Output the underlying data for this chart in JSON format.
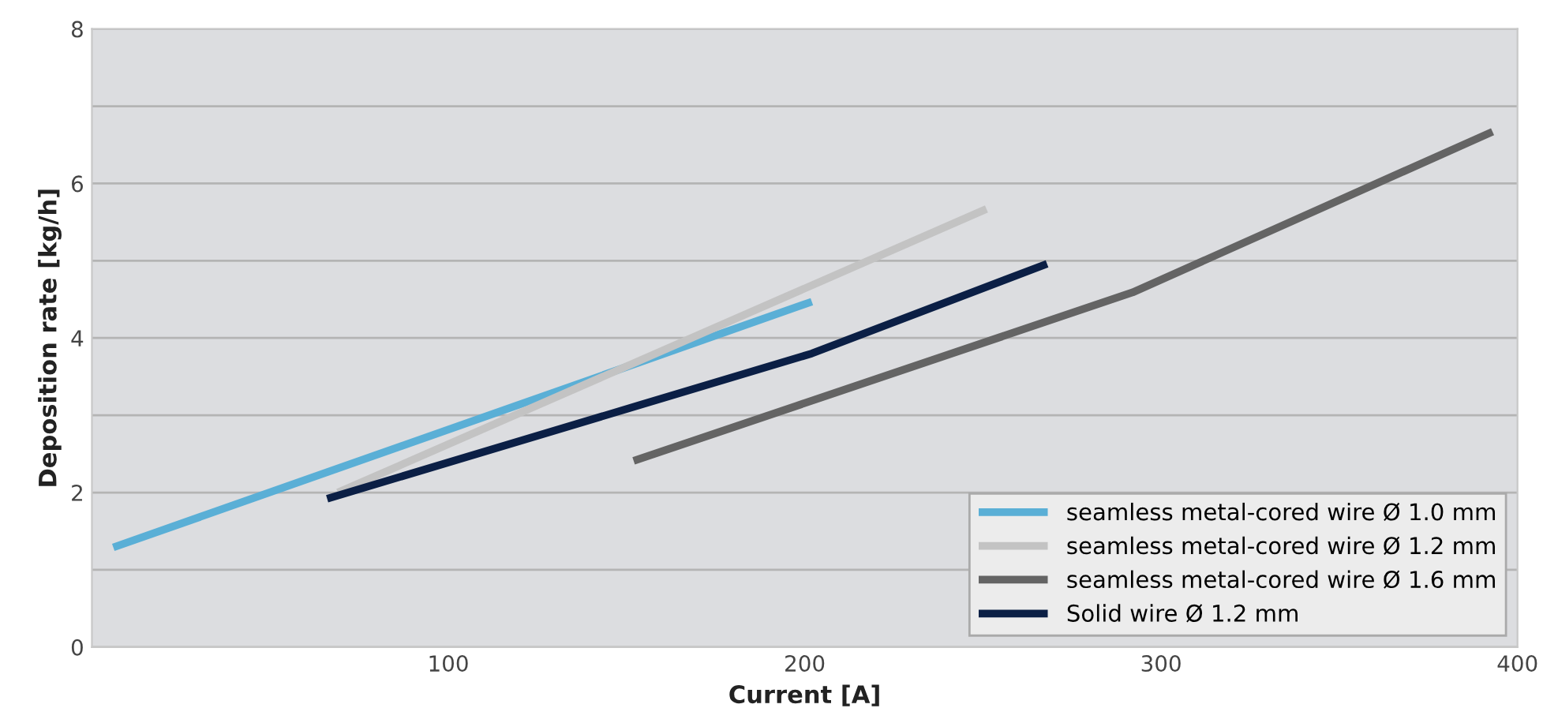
{
  "chart_data": {
    "type": "line",
    "xlabel": "Current [A]",
    "ylabel": "Deposition rate [kg/h]",
    "xlim": [
      0,
      400
    ],
    "ylim": [
      0,
      8
    ],
    "xticks": [
      100,
      200,
      300,
      400
    ],
    "yticks": [
      0,
      {
        "value": 1,
        "label": null
      },
      2,
      {
        "value": 3,
        "label": null
      },
      4,
      {
        "value": 5,
        "label": null
      },
      6,
      {
        "value": 7,
        "label": null
      },
      8
    ],
    "grid": "y",
    "legend": "bottom right",
    "marker": "none",
    "line_style": "solid",
    "series": [
      {
        "name": "seamless metal-cored wire Ø 1.0 mm",
        "color": "#5aafd6",
        "x": [
          6,
          202
        ],
        "values": [
          1.29,
          4.47
        ]
      },
      {
        "name": "seamless metal-cored wire Ø 1.2 mm",
        "color": "#c3c3c3",
        "x": [
          69,
          251
        ],
        "values": [
          2.0,
          5.67
        ]
      },
      {
        "name": "seamless metal-cored wire Ø 1.6 mm",
        "color": "#646464",
        "x": [
          152,
          292,
          393
        ],
        "values": [
          2.41,
          4.59,
          6.67
        ]
      },
      {
        "name": "Solid wire Ø 1.2 mm",
        "color": "#0b1f45",
        "x": [
          66,
          202,
          268
        ],
        "values": [
          1.92,
          3.8,
          4.96
        ]
      }
    ]
  }
}
